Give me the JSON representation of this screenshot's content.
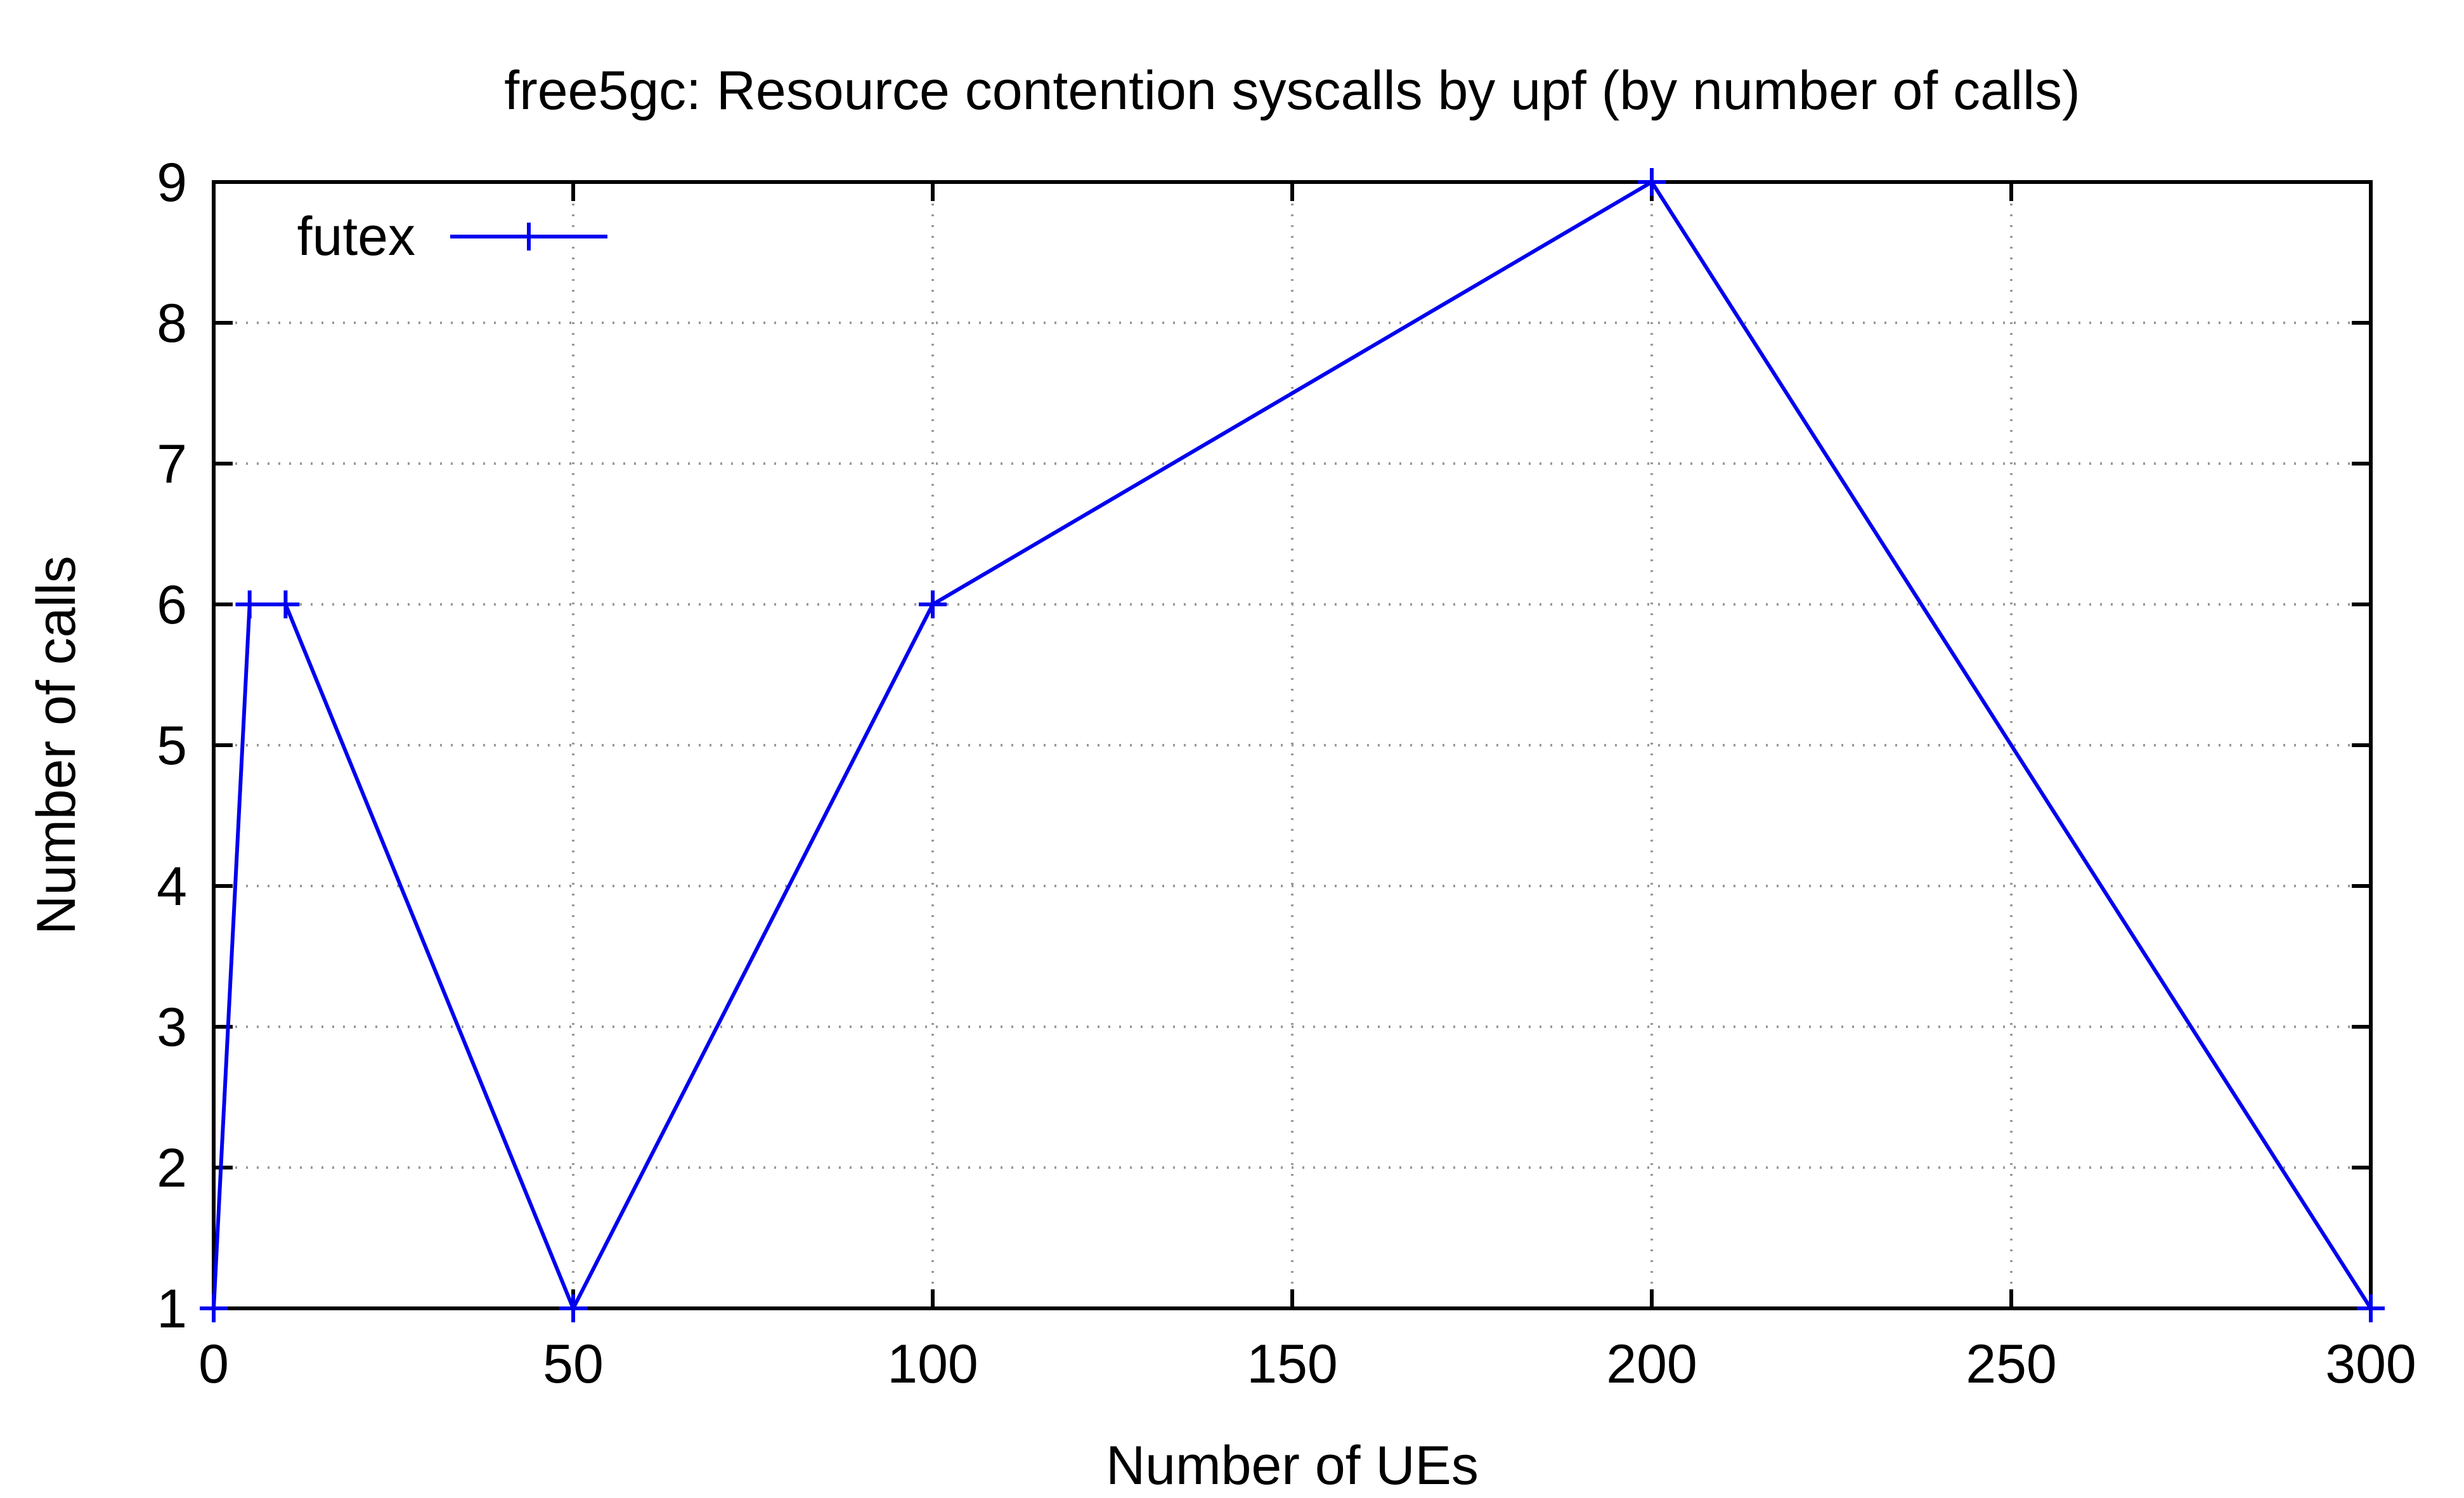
{
  "chart_data": {
    "type": "line",
    "title": "free5gc: Resource contention syscalls by upf (by number of calls)",
    "xlabel": "Number of UEs",
    "ylabel": "Number of calls",
    "xlim": [
      0,
      300
    ],
    "ylim": [
      1,
      9
    ],
    "xticks": [
      0,
      50,
      100,
      150,
      200,
      250,
      300
    ],
    "yticks": [
      1,
      2,
      3,
      4,
      5,
      6,
      7,
      8,
      9
    ],
    "grid": true,
    "legend_position": "top-left",
    "series": [
      {
        "name": "futex",
        "color": "#0000ee",
        "marker": "plus",
        "x": [
          0,
          5,
          10,
          50,
          100,
          200,
          300
        ],
        "y": [
          1,
          6,
          6,
          1,
          6,
          9,
          1
        ]
      }
    ]
  }
}
